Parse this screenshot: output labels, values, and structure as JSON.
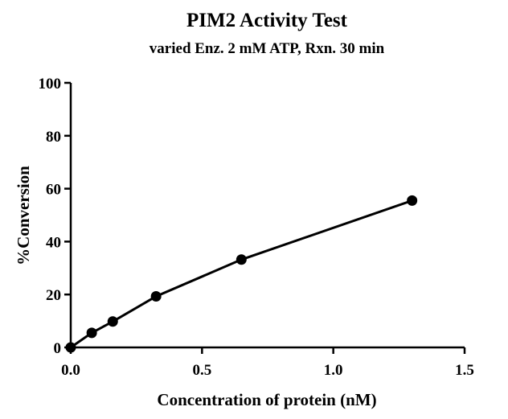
{
  "chart_data": {
    "type": "line",
    "title": "PIM2 Activity Test",
    "subtitle": "varied Enz. 2 mM ATP, Rxn. 30 min",
    "xlabel": "Concentration of protein (nM)",
    "ylabel": "%Conversion",
    "xlim": [
      0,
      1.5
    ],
    "ylim": [
      0,
      100
    ],
    "x_ticks": [
      "0.0",
      "0.5",
      "1.0",
      "1.5"
    ],
    "y_ticks": [
      "0",
      "20",
      "40",
      "60",
      "80",
      "100"
    ],
    "grid": false,
    "series": [
      {
        "x": [
          0,
          0.08,
          0.16,
          0.325,
          0.65,
          1.3
        ],
        "y": [
          0,
          5.5,
          9.8,
          19.3,
          33.2,
          55.5
        ],
        "color": "#000000",
        "marker": "circle"
      }
    ]
  }
}
